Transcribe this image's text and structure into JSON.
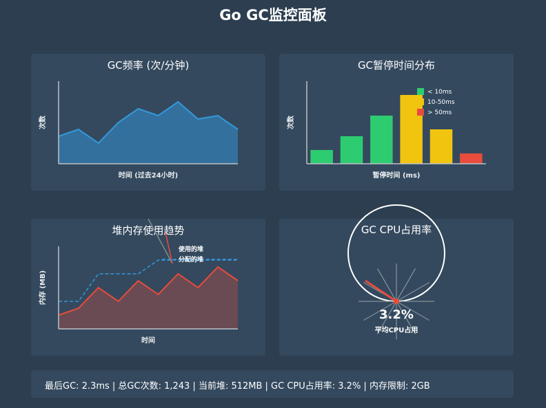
{
  "page": {
    "title": "Go GC监控面板"
  },
  "charts": [
    {
      "type": "area",
      "title": "GC频率 (次/分钟)",
      "xlabel": "时间 (过去24小时)",
      "ylabel": "次数",
      "values": [
        4,
        5,
        3,
        6,
        8,
        7,
        9,
        6.5,
        7,
        5
      ],
      "ylim": [
        0,
        12
      ],
      "color": "#3498db"
    },
    {
      "type": "bar",
      "title": "GC暂停时间分布",
      "xlabel": "暂停时间 (ms)",
      "ylabel": "次数",
      "values": [
        2,
        4,
        7,
        10,
        5,
        1.5
      ],
      "bar_colors": [
        "#2ecc71",
        "#2ecc71",
        "#2ecc71",
        "#f1c40f",
        "#f1c40f",
        "#e74c3c"
      ],
      "ylim": [
        0,
        12
      ],
      "legend": [
        {
          "label": "< 10ms",
          "color": "#2ecc71"
        },
        {
          "label": "10-50ms",
          "color": "#f1c40f"
        },
        {
          "label": "> 50ms",
          "color": "#e74c3c"
        }
      ],
      "legend_position": "top-right"
    },
    {
      "type": "area",
      "title": "堆内存使用趋势",
      "xlabel": "时间",
      "ylabel": "内存 (MB)",
      "series": [
        {
          "name": "使用的堆",
          "values": [
            1,
            1.5,
            3,
            2,
            3.5,
            2.5,
            4,
            3,
            4.5,
            3.5
          ],
          "color": "#e74c3c"
        },
        {
          "name": "分配的堆",
          "values": [
            2,
            2,
            4,
            4,
            4,
            5,
            5,
            5,
            5,
            5
          ],
          "color": "#3498db",
          "dashed": true
        }
      ],
      "ylim": [
        0,
        6
      ]
    },
    {
      "type": "gauge",
      "title": "GC CPU占用率",
      "value": 3.2,
      "value_label": "3.2%",
      "caption": "平均CPU占用",
      "color": "#e74c3c"
    }
  ],
  "status": {
    "text": "最后GC: 2.3ms | 总GC次数: 1,243 | 当前堆: 512MB | GC CPU占用率: 3.2% | 内存限制: 2GB"
  }
}
